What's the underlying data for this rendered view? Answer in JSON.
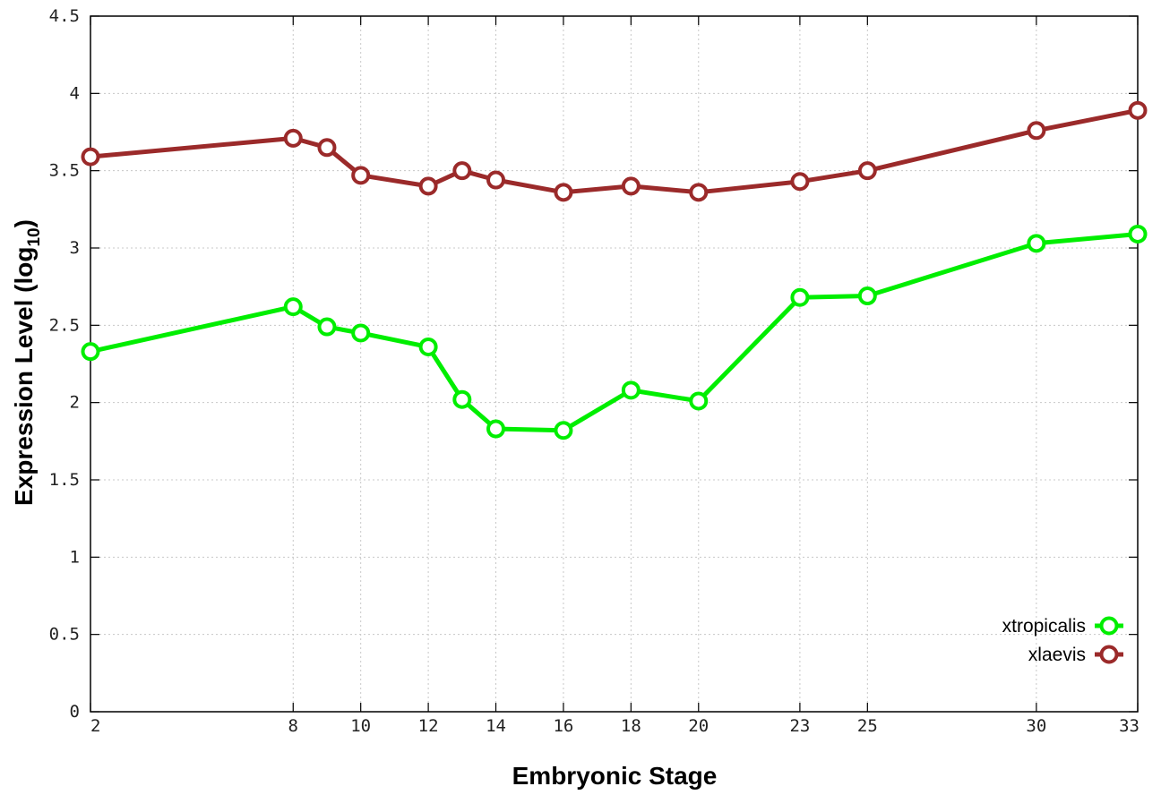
{
  "chart_data": {
    "type": "line",
    "title": "",
    "xlabel": "Embryonic Stage",
    "ylabel_main": "Expression Level (log",
    "ylabel_sub": "10",
    "ylabel_close": ")",
    "x_tick_values": [
      2,
      8,
      10,
      12,
      14,
      16,
      18,
      20,
      23,
      25,
      30,
      33
    ],
    "x_tick_labels": [
      "2",
      "8",
      "10",
      "12",
      "14",
      "16",
      "18",
      "20",
      "23",
      "25",
      "30",
      "33"
    ],
    "y_tick_values": [
      0,
      0.5,
      1,
      1.5,
      2,
      2.5,
      3,
      3.5,
      4,
      4.5
    ],
    "y_tick_labels": [
      "0",
      "0.5",
      "1",
      "1.5",
      "2",
      "2.5",
      "3",
      "3.5",
      "4",
      "4.5"
    ],
    "xlim": [
      2,
      33
    ],
    "ylim": [
      0,
      4.5
    ],
    "grid": true,
    "legend_position": "bottom-right",
    "x": [
      2,
      8,
      9,
      10,
      12,
      13,
      14,
      16,
      18,
      20,
      23,
      25,
      30,
      33
    ],
    "series": [
      {
        "name": "xtropicalis",
        "color": "#00ee00",
        "values": [
          2.33,
          2.62,
          2.49,
          2.45,
          2.36,
          2.02,
          1.83,
          1.82,
          2.08,
          2.01,
          2.68,
          2.69,
          3.03,
          3.09
        ]
      },
      {
        "name": "xlaevis",
        "color": "#9b2a2a",
        "values": [
          3.59,
          3.71,
          3.65,
          3.47,
          3.4,
          3.5,
          3.44,
          3.36,
          3.4,
          3.36,
          3.43,
          3.5,
          3.76,
          3.89
        ]
      }
    ]
  }
}
